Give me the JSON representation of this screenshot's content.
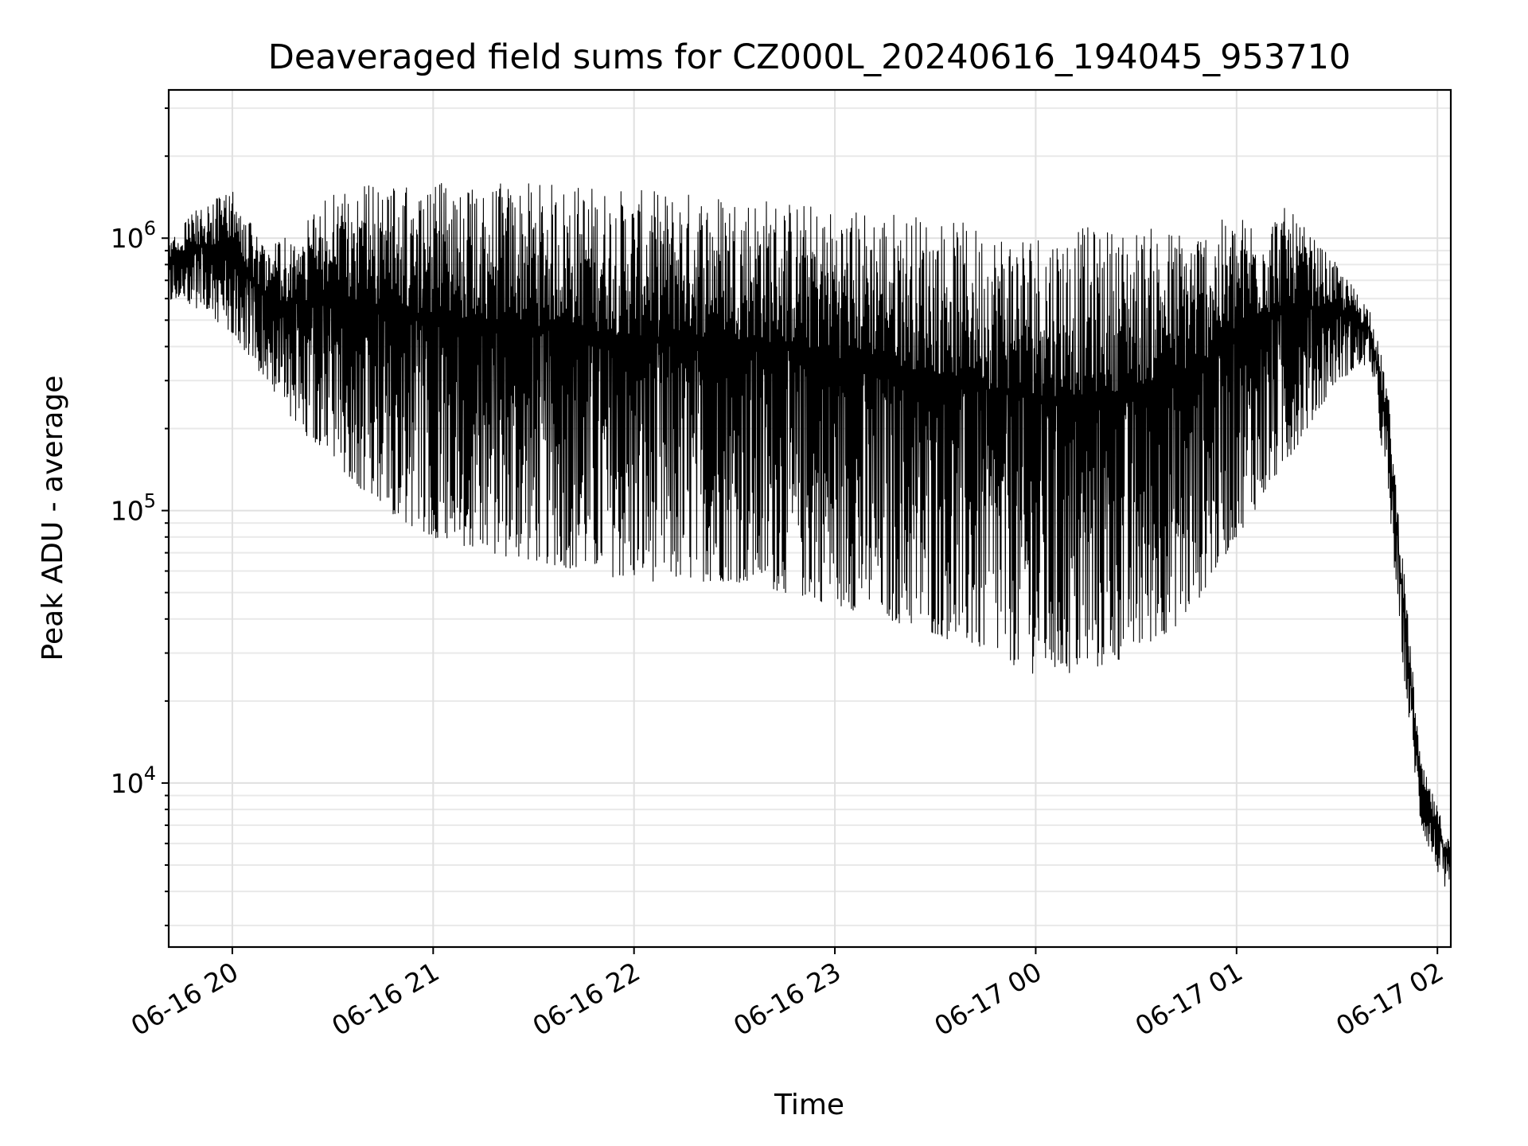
{
  "chart_data": {
    "type": "line",
    "title": "Deaveraged field sums for CZ000L_20240616_194045_953710",
    "xlabel": "Time",
    "ylabel": "Peak ADU - average",
    "y_scale": "log",
    "ylim": [
      2500,
      3500000
    ],
    "xlim": [
      "2024-06-16T19:41:00",
      "2024-06-17T02:04:00"
    ],
    "x_ticks": [
      {
        "value": "2024-06-16T20:00:00",
        "label": "06-16 20"
      },
      {
        "value": "2024-06-16T21:00:00",
        "label": "06-16 21"
      },
      {
        "value": "2024-06-16T22:00:00",
        "label": "06-16 22"
      },
      {
        "value": "2024-06-16T23:00:00",
        "label": "06-16 23"
      },
      {
        "value": "2024-06-17T00:00:00",
        "label": "06-17 00"
      },
      {
        "value": "2024-06-17T01:00:00",
        "label": "06-17 01"
      },
      {
        "value": "2024-06-17T02:00:00",
        "label": "06-17 02"
      }
    ],
    "y_ticks": [
      {
        "value": 10000,
        "base": "10",
        "exp": "4"
      },
      {
        "value": 100000,
        "base": "10",
        "exp": "5"
      },
      {
        "value": 1000000,
        "base": "10",
        "exp": "6"
      }
    ],
    "grid": true,
    "line_color": "#000000",
    "series": [
      {
        "x": [
          "2024-06-16T19:41:00",
          "2024-06-16T19:50:00",
          "2024-06-16T20:00:00",
          "2024-06-16T20:10:00",
          "2024-06-16T20:20:00",
          "2024-06-16T20:30:00",
          "2024-06-16T20:45:00",
          "2024-06-16T21:00:00",
          "2024-06-16T21:15:00",
          "2024-06-16T21:30:00",
          "2024-06-16T21:45:00",
          "2024-06-16T22:00:00",
          "2024-06-16T22:15:00",
          "2024-06-16T22:30:00",
          "2024-06-16T22:45:00",
          "2024-06-16T23:00:00",
          "2024-06-16T23:15:00",
          "2024-06-16T23:30:00",
          "2024-06-16T23:45:00",
          "2024-06-17T00:00:00",
          "2024-06-17T00:15:00",
          "2024-06-17T00:30:00",
          "2024-06-17T00:45:00",
          "2024-06-17T01:00:00",
          "2024-06-17T01:15:00",
          "2024-06-17T01:30:00",
          "2024-06-17T01:40:00",
          "2024-06-17T01:45:00",
          "2024-06-17T01:50:00",
          "2024-06-17T01:55:00",
          "2024-06-17T02:04:00"
        ],
        "high": [
          1000000,
          1300000,
          1500000,
          900000,
          1100000,
          1500000,
          1600000,
          1600000,
          1600000,
          1600000,
          1600000,
          1500000,
          1500000,
          1500000,
          1400000,
          1300000,
          1300000,
          1200000,
          1100000,
          1100000,
          1100000,
          1100000,
          1100000,
          1200000,
          1300000,
          800000,
          550000,
          300000,
          60000,
          12000,
          6000
        ],
        "low": [
          600000,
          550000,
          450000,
          300000,
          200000,
          150000,
          100000,
          80000,
          70000,
          65000,
          60000,
          55000,
          55000,
          55000,
          50000,
          45000,
          40000,
          35000,
          30000,
          25000,
          25000,
          30000,
          40000,
          80000,
          150000,
          300000,
          350000,
          120000,
          25000,
          7000,
          3500
        ]
      }
    ]
  }
}
